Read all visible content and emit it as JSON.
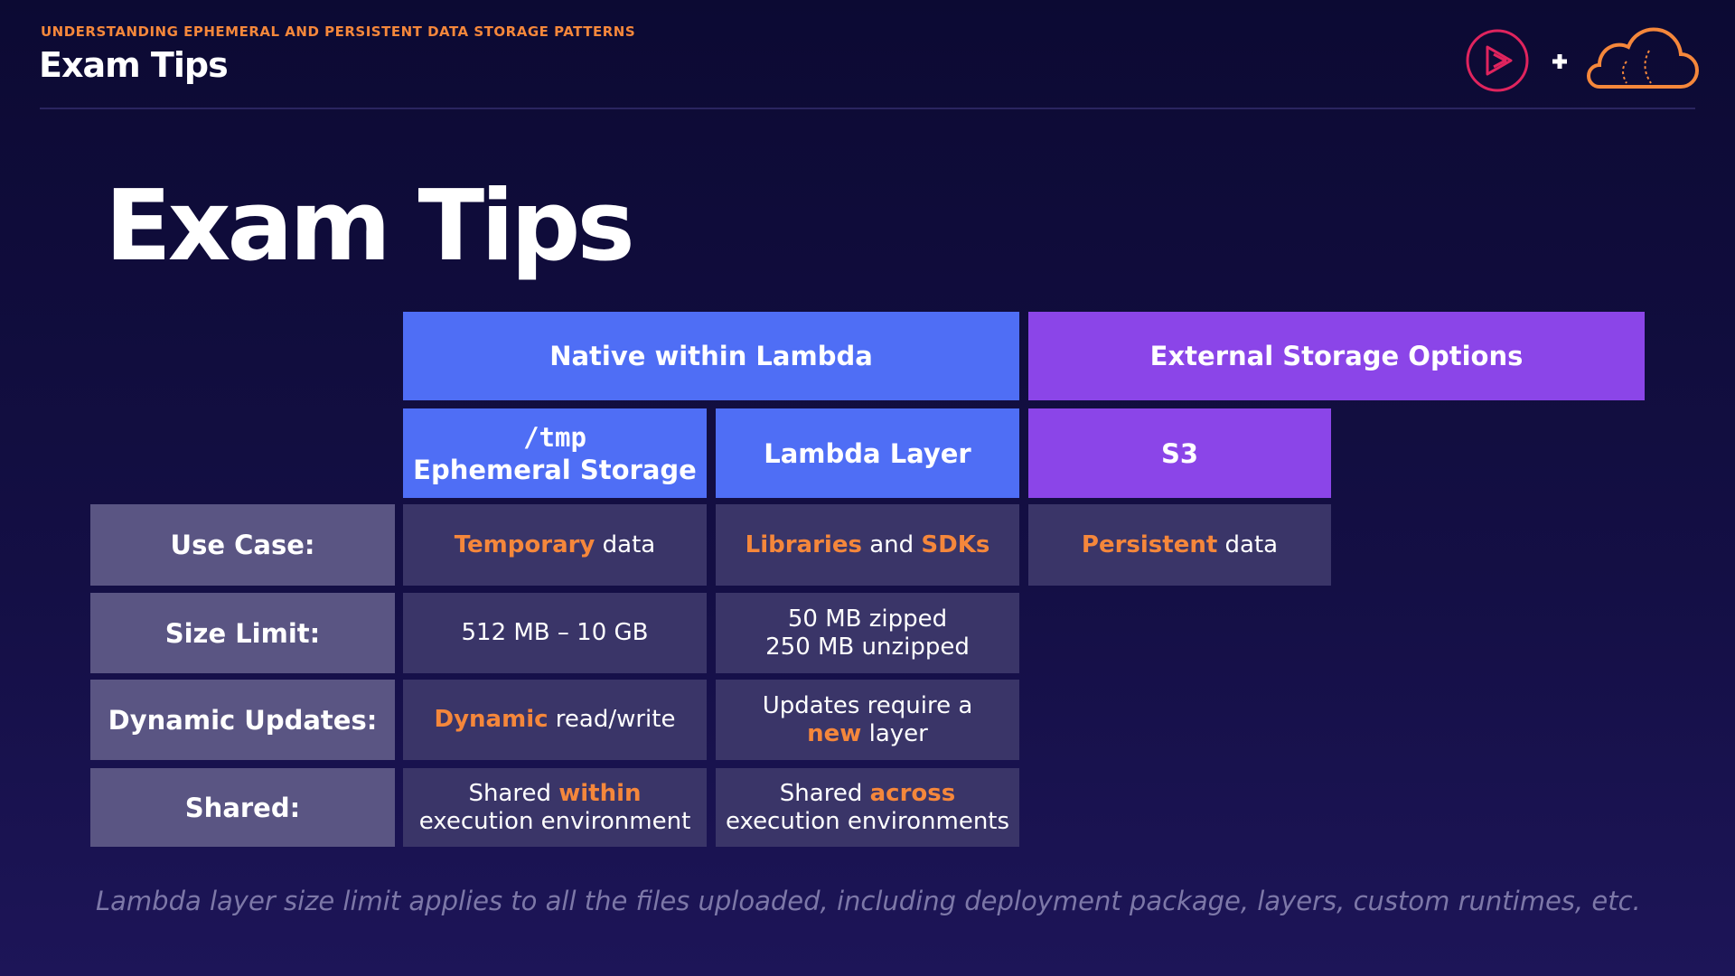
{
  "header": {
    "kicker": "UNDERSTANDING EPHEMERAL AND PERSISTENT DATA STORAGE PATTERNS",
    "title": "Exam Tips"
  },
  "slide": {
    "title": "Exam Tips",
    "table": {
      "group_headers": [
        "Native within Lambda",
        "External Storage Options"
      ],
      "column_headers": [
        [
          [
            {
              "text": "/tmp",
              "code": true
            }
          ],
          [
            {
              "text": "Ephemeral Storage"
            }
          ]
        ],
        [
          [
            {
              "text": "Lambda Layer"
            }
          ]
        ],
        [
          [
            {
              "text": "S3"
            }
          ]
        ]
      ],
      "rows": [
        {
          "label": "Use Case:",
          "cells": [
            [
              [
                {
                  "text": "Temporary",
                  "highlight": true
                },
                {
                  "text": " data"
                }
              ]
            ],
            [
              [
                {
                  "text": "Libraries",
                  "highlight": true
                },
                {
                  "text": " and "
                },
                {
                  "text": "SDKs",
                  "highlight": true
                }
              ]
            ],
            [
              [
                {
                  "text": "Persistent",
                  "highlight": true
                },
                {
                  "text": " data"
                }
              ]
            ]
          ]
        },
        {
          "label": "Size Limit:",
          "cells": [
            [
              [
                {
                  "text": "512 MB – 10 GB"
                }
              ]
            ],
            [
              [
                {
                  "text": "50 MB zipped"
                }
              ],
              [
                {
                  "text": "250 MB unzipped"
                }
              ]
            ]
          ]
        },
        {
          "label": "Dynamic Updates:",
          "cells": [
            [
              [
                {
                  "text": "Dynamic",
                  "highlight": true
                },
                {
                  "text": " read/write"
                }
              ]
            ],
            [
              [
                {
                  "text": "Updates require a"
                }
              ],
              [
                {
                  "text": "new",
                  "highlight": true
                },
                {
                  "text": " layer"
                }
              ]
            ]
          ]
        },
        {
          "label": "Shared:",
          "cells": [
            [
              [
                {
                  "text": "Shared "
                },
                {
                  "text": "within",
                  "highlight": true
                }
              ],
              [
                {
                  "text": "execution environment"
                }
              ]
            ],
            [
              [
                {
                  "text": "Shared "
                },
                {
                  "text": "across",
                  "highlight": true
                }
              ],
              [
                {
                  "text": "execution environments"
                }
              ]
            ]
          ]
        }
      ]
    },
    "footnote": "Lambda layer size limit applies to all the files uploaded, including deployment package, layers, custom runtimes, etc."
  }
}
